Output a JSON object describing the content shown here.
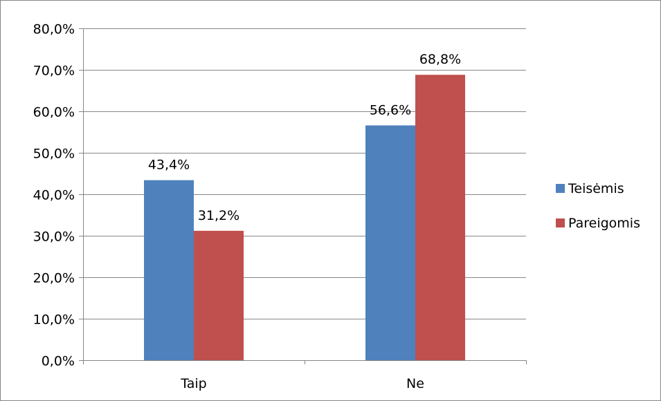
{
  "chart_data": {
    "type": "bar",
    "categories": [
      "Taip",
      "Ne"
    ],
    "series": [
      {
        "name": "Teisėmis",
        "values": [
          43.4,
          56.6
        ],
        "labels": [
          "43,4%",
          "56,6%"
        ],
        "color": "#4f81bd"
      },
      {
        "name": "Pareigomis",
        "values": [
          31.2,
          68.8
        ],
        "labels": [
          "31,2%",
          "68,8%"
        ],
        "color": "#c0504d"
      }
    ],
    "y_ticks": [
      "0,0%",
      "10,0%",
      "20,0%",
      "30,0%",
      "40,0%",
      "50,0%",
      "60,0%",
      "70,0%",
      "80,0%"
    ],
    "ylim": [
      0,
      80
    ],
    "grid": true,
    "legend_position": "right",
    "title": "",
    "xlabel": "",
    "ylabel": ""
  }
}
